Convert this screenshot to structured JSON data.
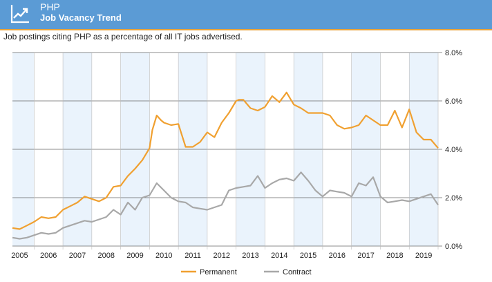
{
  "header": {
    "title": "PHP",
    "subtitle": "Job Vacancy Trend",
    "icon": "trend-line-icon"
  },
  "caption": "Job postings citing PHP as a percentage of all IT jobs advertised.",
  "colors": {
    "header_bg": "#5b9bd5",
    "header_accent": "#e8a33a",
    "permanent": "#f0a030",
    "contract": "#a8a8a8",
    "band": "#eaf3fc"
  },
  "chart_data": {
    "type": "line",
    "title": "Job Vacancy Trend",
    "xlabel": "",
    "ylabel": "",
    "xlim": [
      2004.25,
      2019.0
    ],
    "ylim": [
      0,
      8
    ],
    "y_ticks": [
      {
        "value": 0,
        "label": "0.0%"
      },
      {
        "value": 2,
        "label": "2.0%"
      },
      {
        "value": 4,
        "label": "4.0%"
      },
      {
        "value": 6,
        "label": "6.0%"
      },
      {
        "value": 8,
        "label": "8.0%"
      }
    ],
    "x_ticks": [
      "2005",
      "2006",
      "2007",
      "2008",
      "2009",
      "2010",
      "2011",
      "2012",
      "2013",
      "2014",
      "2015",
      "2016",
      "2017",
      "2018",
      "2019"
    ],
    "legend": [
      "Permanent",
      "Contract"
    ],
    "legend_position": "bottom",
    "series": [
      {
        "name": "Permanent",
        "x": [
          2004.25,
          2004.5,
          2004.75,
          2005.0,
          2005.25,
          2005.5,
          2005.75,
          2006.0,
          2006.25,
          2006.5,
          2006.75,
          2007.0,
          2007.25,
          2007.5,
          2007.75,
          2008.0,
          2008.25,
          2008.5,
          2008.75,
          2009.0,
          2009.1,
          2009.25,
          2009.4,
          2009.5,
          2009.75,
          2010.0,
          2010.25,
          2010.5,
          2010.75,
          2011.0,
          2011.25,
          2011.5,
          2011.75,
          2012.0,
          2012.1,
          2012.25,
          2012.5,
          2012.75,
          2013.0,
          2013.25,
          2013.5,
          2013.75,
          2014.0,
          2014.25,
          2014.5,
          2014.75,
          2015.0,
          2015.25,
          2015.5,
          2015.75,
          2016.0,
          2016.25,
          2016.5,
          2016.75,
          2017.0,
          2017.25,
          2017.5,
          2017.75,
          2018.0,
          2018.25,
          2018.5,
          2018.75,
          2019.0
        ],
        "values": [
          0.75,
          0.7,
          0.85,
          1.0,
          1.2,
          1.15,
          1.2,
          1.5,
          1.65,
          1.8,
          2.05,
          1.95,
          1.85,
          2.0,
          2.45,
          2.5,
          2.9,
          3.2,
          3.55,
          4.05,
          4.8,
          5.4,
          5.2,
          5.1,
          5.0,
          5.05,
          4.1,
          4.1,
          4.3,
          4.7,
          4.5,
          5.1,
          5.5,
          6.0,
          6.05,
          6.05,
          5.7,
          5.6,
          5.75,
          6.2,
          5.95,
          6.35,
          5.85,
          5.7,
          5.5,
          5.5,
          5.5,
          5.4,
          5.0,
          4.85,
          4.9,
          5.0,
          5.4,
          5.2,
          5.0,
          5.0,
          5.6,
          4.9,
          5.65,
          4.7,
          4.4,
          4.4,
          4.05
        ]
      },
      {
        "name": "Contract",
        "x": [
          2004.25,
          2004.5,
          2004.75,
          2005.0,
          2005.25,
          2005.5,
          2005.75,
          2006.0,
          2006.25,
          2006.5,
          2006.75,
          2007.0,
          2007.25,
          2007.5,
          2007.75,
          2008.0,
          2008.25,
          2008.5,
          2008.75,
          2009.0,
          2009.25,
          2009.5,
          2009.75,
          2010.0,
          2010.25,
          2010.5,
          2010.75,
          2011.0,
          2011.25,
          2011.5,
          2011.75,
          2012.0,
          2012.25,
          2012.5,
          2012.75,
          2013.0,
          2013.25,
          2013.5,
          2013.75,
          2014.0,
          2014.25,
          2014.5,
          2014.75,
          2015.0,
          2015.25,
          2015.5,
          2015.75,
          2016.0,
          2016.25,
          2016.5,
          2016.75,
          2017.0,
          2017.25,
          2017.5,
          2017.75,
          2018.0,
          2018.25,
          2018.5,
          2018.75,
          2019.0
        ],
        "values": [
          0.35,
          0.3,
          0.35,
          0.45,
          0.55,
          0.5,
          0.55,
          0.75,
          0.85,
          0.95,
          1.05,
          1.0,
          1.1,
          1.2,
          1.5,
          1.3,
          1.8,
          1.5,
          2.0,
          2.1,
          2.6,
          2.3,
          2.0,
          1.85,
          1.8,
          1.6,
          1.55,
          1.5,
          1.6,
          1.7,
          2.3,
          2.4,
          2.45,
          2.5,
          2.9,
          2.4,
          2.6,
          2.75,
          2.8,
          2.7,
          3.05,
          2.7,
          2.3,
          2.05,
          2.3,
          2.25,
          2.2,
          2.05,
          2.6,
          2.5,
          2.85,
          2.05,
          1.8,
          1.85,
          1.9,
          1.85,
          1.95,
          2.05,
          2.15,
          1.7
        ]
      }
    ]
  }
}
